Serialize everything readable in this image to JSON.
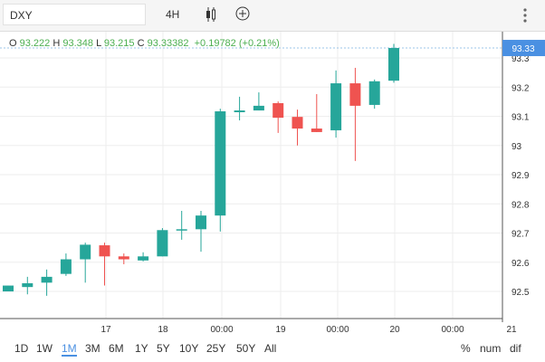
{
  "toolbar": {
    "symbol": "DXY",
    "interval": "4H"
  },
  "legend": {
    "o_label": "O",
    "o": "93.222",
    "h_label": "H",
    "h": "93.348",
    "l_label": "L",
    "l": "93.215",
    "c_label": "C",
    "c": "93.33382",
    "change": "+0.19782 (+0.21%)"
  },
  "price_tag": "93.33",
  "ranges": [
    "1D",
    "1W",
    "1M",
    "3M",
    "6M",
    "1Y",
    "5Y",
    "10Y",
    "25Y",
    "50Y",
    "All"
  ],
  "active_range": "1M",
  "scale_modes": [
    "%",
    "num",
    "dif"
  ],
  "colors": {
    "up": "#26a69a",
    "down": "#ef5350",
    "accent": "#4a90e2"
  },
  "chart_data": {
    "type": "candlestick",
    "title": "DXY 4H",
    "ylim": [
      92.45,
      93.4
    ],
    "y_ticks": [
      "93.3",
      "93.2",
      "93.1",
      "93",
      "92.9",
      "92.8",
      "92.7",
      "92.6",
      "92.5"
    ],
    "x_ticks": [
      "17",
      "18",
      "00:00",
      "19",
      "00:00",
      "20",
      "00:00",
      "21"
    ],
    "candles": [
      [
        92.5,
        92.52,
        92.5,
        92.52
      ],
      [
        92.515,
        92.55,
        92.49,
        92.528
      ],
      [
        92.53,
        92.575,
        92.485,
        92.55
      ],
      [
        92.56,
        92.63,
        92.553,
        92.61
      ],
      [
        92.61,
        92.667,
        92.53,
        92.66
      ],
      [
        92.658,
        92.667,
        92.52,
        92.62
      ],
      [
        92.62,
        92.63,
        92.593,
        92.61
      ],
      [
        92.606,
        92.634,
        92.603,
        92.62
      ],
      [
        92.62,
        92.717,
        92.62,
        92.71
      ],
      [
        92.71,
        92.776,
        92.677,
        92.713
      ],
      [
        92.713,
        92.776,
        92.636,
        92.76
      ],
      [
        92.76,
        93.126,
        92.705,
        93.117
      ],
      [
        93.114,
        93.167,
        93.086,
        93.12
      ],
      [
        93.12,
        93.182,
        93.12,
        93.136
      ],
      [
        93.145,
        93.151,
        93.043,
        93.095
      ],
      [
        93.098,
        93.123,
        93.0,
        93.058
      ],
      [
        93.058,
        93.176,
        93.046,
        93.046
      ],
      [
        93.052,
        93.257,
        93.027,
        93.213
      ],
      [
        93.213,
        93.266,
        92.947,
        93.136
      ],
      [
        93.139,
        93.226,
        93.126,
        93.22
      ],
      [
        93.222,
        93.348,
        93.215,
        93.334
      ]
    ],
    "last": 93.334
  }
}
